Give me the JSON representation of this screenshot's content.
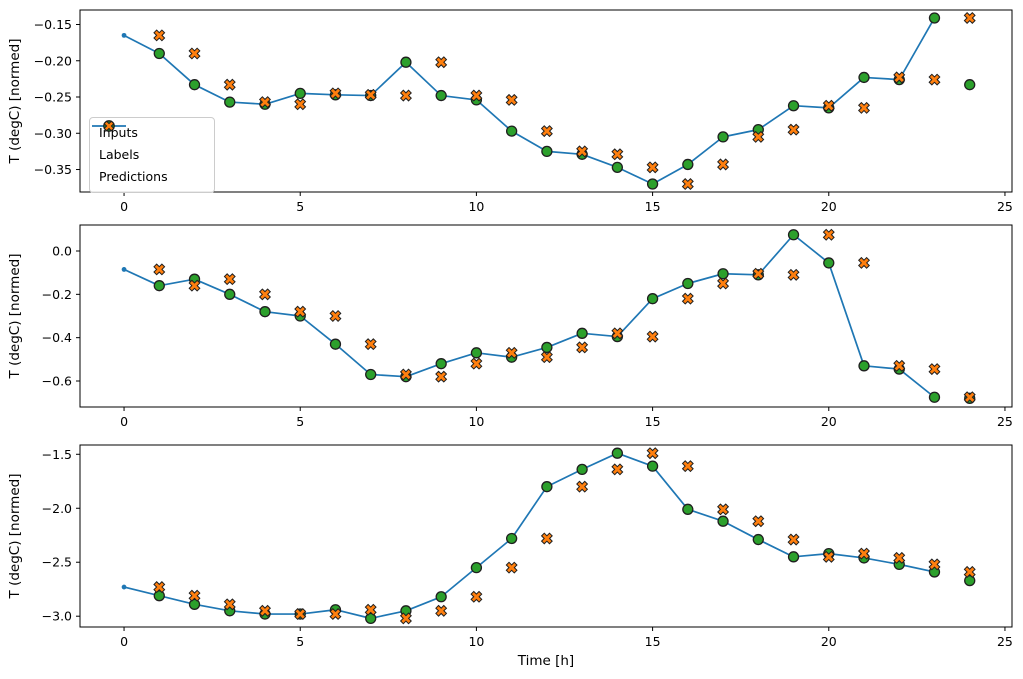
{
  "figure": {
    "background": "#ffffff",
    "colors": {
      "inputs": "#1f77b4",
      "labels": "#2ca02c",
      "predictions": "#ff7f0e",
      "marker_edge": "#1f1f1f",
      "spine": "#000000",
      "text": "#000000",
      "legend_border": "#cccccc"
    },
    "legend": {
      "items": [
        {
          "label": "Inputs",
          "marker": "line-dot"
        },
        {
          "label": "Labels",
          "marker": "circle"
        },
        {
          "label": "Predictions",
          "marker": "X"
        }
      ]
    }
  },
  "chart_data": [
    {
      "type": "line+scatter",
      "title": "",
      "xlabel": "",
      "ylabel": "T (degC) [normed]",
      "xlim": [
        -1.25,
        25.2
      ],
      "ylim": [
        -0.381,
        -0.13
      ],
      "grid": false,
      "legend_position": "lower left of first subplot",
      "xticks": {
        "values": [
          0,
          5,
          10,
          15,
          20,
          25
        ],
        "labels": [
          "0",
          "5",
          "10",
          "15",
          "20",
          "25"
        ]
      },
      "yticks": {
        "values": [
          -0.15,
          -0.2,
          -0.25,
          -0.3,
          -0.35
        ],
        "labels": [
          "−0.15",
          "−0.20",
          "−0.25",
          "−0.30",
          "−0.35"
        ]
      },
      "series": [
        {
          "name": "Inputs",
          "type": "line",
          "marker": "dot",
          "x": [
            0,
            1,
            2,
            3,
            4,
            5,
            6,
            7,
            8,
            9,
            10,
            11,
            12,
            13,
            14,
            15,
            16,
            17,
            18,
            19,
            20,
            21,
            22,
            23
          ],
          "y": [
            -0.165,
            -0.19,
            -0.233,
            -0.257,
            -0.26,
            -0.245,
            -0.247,
            -0.248,
            -0.202,
            -0.248,
            -0.254,
            -0.297,
            -0.325,
            -0.329,
            -0.347,
            -0.37,
            -0.343,
            -0.305,
            -0.295,
            -0.262,
            -0.265,
            -0.223,
            -0.226,
            -0.141
          ]
        },
        {
          "name": "Labels",
          "type": "scatter",
          "marker": "circle",
          "x": [
            1,
            2,
            3,
            4,
            5,
            6,
            7,
            8,
            9,
            10,
            11,
            12,
            13,
            14,
            15,
            16,
            17,
            18,
            19,
            20,
            21,
            22,
            23,
            24
          ],
          "y": [
            -0.19,
            -0.233,
            -0.257,
            -0.26,
            -0.245,
            -0.247,
            -0.248,
            -0.202,
            -0.248,
            -0.254,
            -0.297,
            -0.325,
            -0.329,
            -0.347,
            -0.37,
            -0.343,
            -0.305,
            -0.295,
            -0.262,
            -0.265,
            -0.223,
            -0.226,
            -0.141,
            -0.233
          ]
        },
        {
          "name": "Predictions",
          "type": "scatter",
          "marker": "X",
          "x": [
            1,
            2,
            3,
            4,
            5,
            6,
            7,
            8,
            9,
            10,
            11,
            12,
            13,
            14,
            15,
            16,
            17,
            18,
            19,
            20,
            21,
            22,
            23,
            24
          ],
          "y": [
            -0.165,
            -0.19,
            -0.233,
            -0.257,
            -0.26,
            -0.245,
            -0.247,
            -0.248,
            -0.202,
            -0.248,
            -0.254,
            -0.297,
            -0.325,
            -0.329,
            -0.347,
            -0.37,
            -0.343,
            -0.305,
            -0.295,
            -0.262,
            -0.265,
            -0.223,
            -0.226,
            -0.141
          ]
        }
      ]
    },
    {
      "type": "line+scatter",
      "title": "",
      "xlabel": "",
      "ylabel": "T (degC) [normed]",
      "xlim": [
        -1.25,
        25.2
      ],
      "ylim": [
        -0.72,
        0.12
      ],
      "grid": false,
      "xticks": {
        "values": [
          0,
          5,
          10,
          15,
          20,
          25
        ],
        "labels": [
          "0",
          "5",
          "10",
          "15",
          "20",
          "25"
        ]
      },
      "yticks": {
        "values": [
          0.0,
          -0.2,
          -0.4,
          -0.6
        ],
        "labels": [
          "0.0",
          "−0.2",
          "−0.4",
          "−0.6"
        ]
      },
      "series": [
        {
          "name": "Inputs",
          "type": "line",
          "marker": "dot",
          "x": [
            0,
            1,
            2,
            3,
            4,
            5,
            6,
            7,
            8,
            9,
            10,
            11,
            12,
            13,
            14,
            15,
            16,
            17,
            18,
            19,
            20,
            21,
            22,
            23
          ],
          "y": [
            -0.085,
            -0.16,
            -0.13,
            -0.2,
            -0.28,
            -0.3,
            -0.43,
            -0.57,
            -0.58,
            -0.52,
            -0.47,
            -0.49,
            -0.445,
            -0.38,
            -0.395,
            -0.22,
            -0.15,
            -0.105,
            -0.11,
            0.075,
            -0.055,
            -0.53,
            -0.545,
            -0.675
          ]
        },
        {
          "name": "Labels",
          "type": "scatter",
          "marker": "circle",
          "x": [
            1,
            2,
            3,
            4,
            5,
            6,
            7,
            8,
            9,
            10,
            11,
            12,
            13,
            14,
            15,
            16,
            17,
            18,
            19,
            20,
            21,
            22,
            23,
            24
          ],
          "y": [
            -0.16,
            -0.13,
            -0.2,
            -0.28,
            -0.3,
            -0.43,
            -0.57,
            -0.58,
            -0.52,
            -0.47,
            -0.49,
            -0.445,
            -0.38,
            -0.395,
            -0.22,
            -0.15,
            -0.105,
            -0.11,
            0.075,
            -0.055,
            -0.53,
            -0.545,
            -0.675,
            -0.68
          ]
        },
        {
          "name": "Predictions",
          "type": "scatter",
          "marker": "X",
          "x": [
            1,
            2,
            3,
            4,
            5,
            6,
            7,
            8,
            9,
            10,
            11,
            12,
            13,
            14,
            15,
            16,
            17,
            18,
            19,
            20,
            21,
            22,
            23,
            24
          ],
          "y": [
            -0.085,
            -0.16,
            -0.13,
            -0.2,
            -0.28,
            -0.3,
            -0.43,
            -0.57,
            -0.58,
            -0.52,
            -0.47,
            -0.49,
            -0.445,
            -0.38,
            -0.395,
            -0.22,
            -0.15,
            -0.105,
            -0.11,
            0.075,
            -0.055,
            -0.53,
            -0.545,
            -0.675
          ]
        }
      ]
    },
    {
      "type": "line+scatter",
      "title": "",
      "xlabel": "Time [h]",
      "ylabel": "T (degC) [normed]",
      "xlim": [
        -1.25,
        25.2
      ],
      "ylim": [
        -3.1,
        -1.414
      ],
      "grid": false,
      "xticks": {
        "values": [
          0,
          5,
          10,
          15,
          20,
          25
        ],
        "labels": [
          "0",
          "5",
          "10",
          "15",
          "20",
          "25"
        ]
      },
      "yticks": {
        "values": [
          -1.5,
          -2.0,
          -2.5,
          -3.0
        ],
        "labels": [
          "−1.5",
          "−2.0",
          "−2.5",
          "−3.0"
        ]
      },
      "series": [
        {
          "name": "Inputs",
          "type": "line",
          "marker": "dot",
          "x": [
            0,
            1,
            2,
            3,
            4,
            5,
            6,
            7,
            8,
            9,
            10,
            11,
            12,
            13,
            14,
            15,
            16,
            17,
            18,
            19,
            20,
            21,
            22,
            23
          ],
          "y": [
            -2.73,
            -2.81,
            -2.89,
            -2.95,
            -2.98,
            -2.98,
            -2.94,
            -3.02,
            -2.95,
            -2.82,
            -2.55,
            -2.28,
            -1.8,
            -1.64,
            -1.49,
            -1.61,
            -2.01,
            -2.12,
            -2.29,
            -2.45,
            -2.42,
            -2.46,
            -2.52,
            -2.59
          ]
        },
        {
          "name": "Labels",
          "type": "scatter",
          "marker": "circle",
          "x": [
            1,
            2,
            3,
            4,
            5,
            6,
            7,
            8,
            9,
            10,
            11,
            12,
            13,
            14,
            15,
            16,
            17,
            18,
            19,
            20,
            21,
            22,
            23,
            24
          ],
          "y": [
            -2.81,
            -2.89,
            -2.95,
            -2.98,
            -2.98,
            -2.94,
            -3.02,
            -2.95,
            -2.82,
            -2.55,
            -2.28,
            -1.8,
            -1.64,
            -1.49,
            -1.61,
            -2.01,
            -2.12,
            -2.29,
            -2.45,
            -2.42,
            -2.46,
            -2.52,
            -2.59,
            -2.67
          ]
        },
        {
          "name": "Predictions",
          "type": "scatter",
          "marker": "X",
          "x": [
            1,
            2,
            3,
            4,
            5,
            6,
            7,
            8,
            9,
            10,
            11,
            12,
            13,
            14,
            15,
            16,
            17,
            18,
            19,
            20,
            21,
            22,
            23,
            24
          ],
          "y": [
            -2.73,
            -2.81,
            -2.89,
            -2.95,
            -2.98,
            -2.98,
            -2.94,
            -3.02,
            -2.95,
            -2.82,
            -2.55,
            -2.28,
            -1.8,
            -1.64,
            -1.49,
            -1.61,
            -2.01,
            -2.12,
            -2.29,
            -2.45,
            -2.42,
            -2.46,
            -2.52,
            -2.59
          ]
        }
      ]
    }
  ]
}
